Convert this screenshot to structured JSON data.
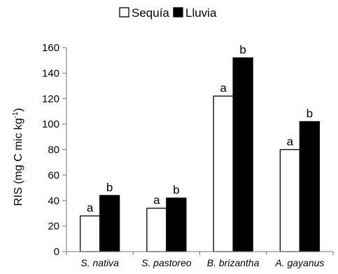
{
  "chart_data": {
    "type": "bar",
    "title": "",
    "xlabel": "",
    "ylabel": "RIS (mg C mic kg",
    "ylabel_superscript": "-1",
    "ylabel_close": ")",
    "categories": [
      "S. nativa",
      "S. pastoreo",
      "B. brizantha",
      "A. gayanus"
    ],
    "series": [
      {
        "name": "Sequía",
        "color": "#ffffff",
        "values": [
          28,
          34,
          122,
          80
        ],
        "letters": [
          "a",
          "a",
          "a",
          "a"
        ]
      },
      {
        "name": "Lluvia",
        "color": "#000000",
        "values": [
          44,
          42,
          152,
          102
        ],
        "letters": [
          "b",
          "b",
          "b",
          "b"
        ]
      }
    ],
    "ylim": [
      0,
      160
    ],
    "yticks": [
      "0",
      "20",
      "40",
      "60",
      "80",
      "100",
      "120",
      "140",
      "160"
    ],
    "grid": false,
    "legend_position": "top-center"
  }
}
